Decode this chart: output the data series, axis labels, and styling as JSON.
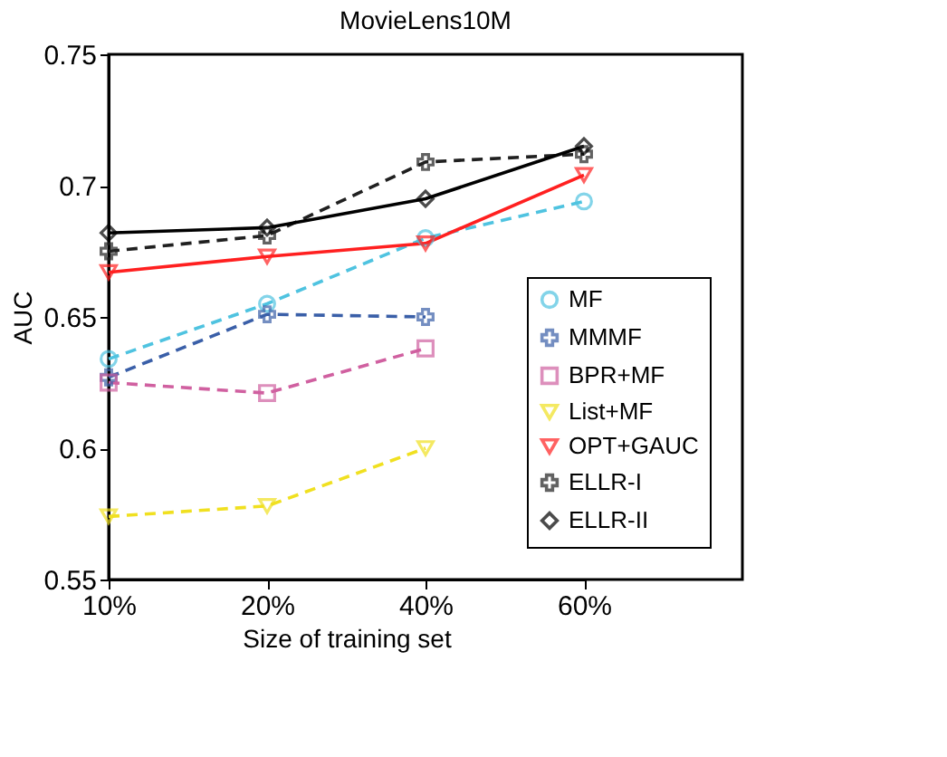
{
  "chart_data": {
    "type": "line",
    "title": "MovieLens10M",
    "xlabel": "Size of training set",
    "ylabel": "AUC",
    "categories": [
      "10%",
      "20%",
      "40%",
      "60%"
    ],
    "ylim": [
      0.55,
      0.75
    ],
    "yticks": [
      0.55,
      0.6,
      0.65,
      0.7,
      0.75
    ],
    "grid": false,
    "legend": "bottom right",
    "series": [
      {
        "name": "MF",
        "color": "#4fc3e0",
        "marker": "circle",
        "line_style": "dashed",
        "values": [
          0.634,
          0.655,
          0.68,
          0.694
        ]
      },
      {
        "name": "MMMF",
        "color": "#3a5fa8",
        "marker": "cross",
        "line_style": "dashed",
        "values": [
          0.627,
          0.651,
          0.65,
          null
        ]
      },
      {
        "name": "BPR+MF",
        "color": "#d060a0",
        "marker": "square",
        "line_style": "dashed",
        "values": [
          0.625,
          0.621,
          0.638,
          null
        ]
      },
      {
        "name": "List+MF",
        "color": "#f0e020",
        "marker": "triangle",
        "line_style": "dashed",
        "values": [
          0.574,
          0.578,
          0.6,
          null
        ]
      },
      {
        "name": "OPT+GAUC",
        "color": "#ff2020",
        "marker": "triangle",
        "line_style": "solid",
        "values": [
          0.667,
          0.673,
          0.678,
          0.704
        ]
      },
      {
        "name": "ELLR-I",
        "color": "#202020",
        "marker": "cross",
        "line_style": "dashed",
        "values": [
          0.675,
          0.681,
          0.709,
          0.712
        ]
      },
      {
        "name": "ELLR-II",
        "color": "#000000",
        "marker": "diamond",
        "line_style": "solid",
        "values": [
          0.682,
          0.684,
          0.695,
          0.715
        ]
      }
    ]
  }
}
